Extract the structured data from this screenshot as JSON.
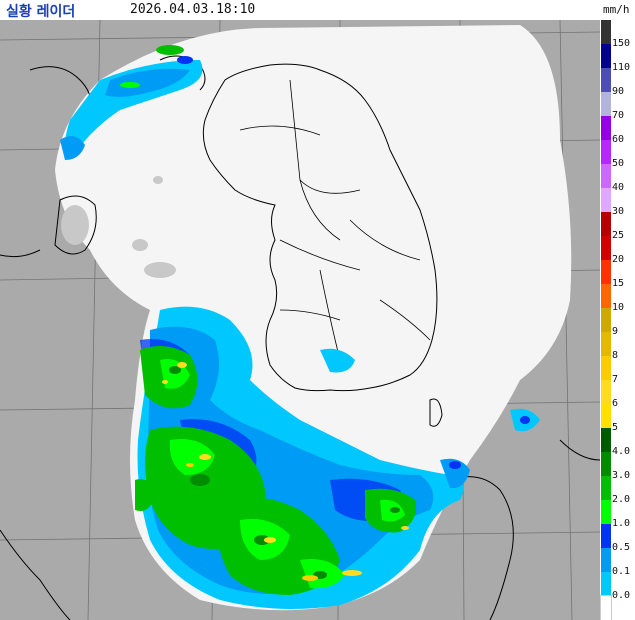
{
  "header": {
    "title": "실황 레이더",
    "timestamp": "2026.04.03.18:10",
    "unit": "mm/h"
  },
  "legend": {
    "items": [
      {
        "label": "150",
        "color": "#333333"
      },
      {
        "label": "110",
        "color": "#000390"
      },
      {
        "label": "90",
        "color": "#4c4eb1"
      },
      {
        "label": "70",
        "color": "#b3b4de"
      },
      {
        "label": "60",
        "color": "#9300e4"
      },
      {
        "label": "50",
        "color": "#b329ff"
      },
      {
        "label": "40",
        "color": "#c969ff"
      },
      {
        "label": "30",
        "color": "#e0a9ff"
      },
      {
        "label": "25",
        "color": "#b40000"
      },
      {
        "label": "20",
        "color": "#d20000"
      },
      {
        "label": "15",
        "color": "#ff3200"
      },
      {
        "label": "10",
        "color": "#ff6600"
      },
      {
        "label": "9",
        "color": "#ccaa00"
      },
      {
        "label": "8",
        "color": "#e0b900"
      },
      {
        "label": "7",
        "color": "#f9cd00"
      },
      {
        "label": "6",
        "color": "#ffdc1f"
      },
      {
        "label": "5",
        "color": "#ffe100"
      },
      {
        "label": "4.0",
        "color": "#005a00"
      },
      {
        "label": "3.0",
        "color": "#008c00"
      },
      {
        "label": "2.0",
        "color": "#00be00"
      },
      {
        "label": "1.0",
        "color": "#00ff00"
      },
      {
        "label": "0.5",
        "color": "#0033f5"
      },
      {
        "label": "0.1",
        "color": "#009bf5"
      },
      {
        "label": "0.0",
        "color": "#00c8ff"
      }
    ],
    "base_color": "#ffffff"
  },
  "map": {
    "background_color": "#aaaaaa",
    "coverage_color": "#f5f5f5",
    "border_color": "#000000",
    "grid_color": "#666666",
    "echo_colors": {
      "light": "#00c8ff",
      "weak": "#009bf5",
      "moderate": "#0033f5",
      "green": "#00be00",
      "bright_green": "#00ff00",
      "dark_green": "#008c00",
      "yellow": "#ffdc1f",
      "orange": "#f9cd00",
      "gray_echo": "#c8c8c8"
    }
  }
}
